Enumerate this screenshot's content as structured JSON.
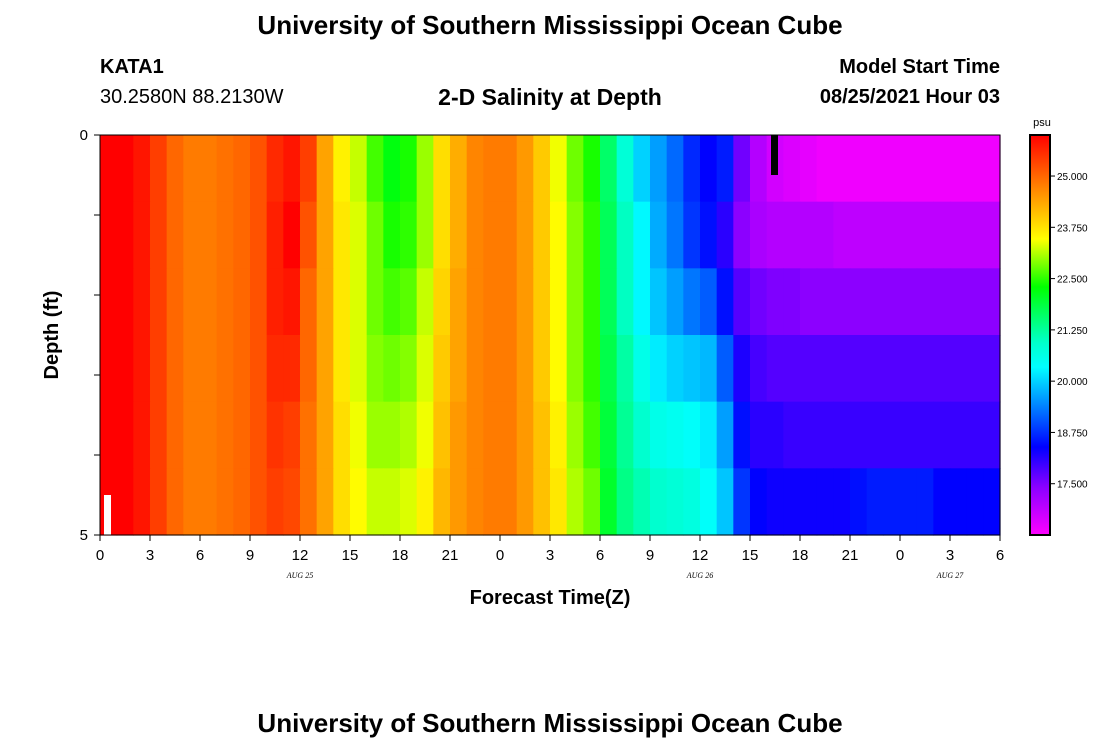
{
  "header": {
    "title": "University of Southern Mississippi Ocean Cube",
    "station_id": "KATA1",
    "station_coords": "30.2580N  88.2130W",
    "chart_title": "2-D Salinity at Depth",
    "model_start_label": "Model Start Time",
    "model_start_time": "08/25/2021 Hour 03"
  },
  "footer": {
    "title": "University of Southern Mississippi Ocean Cube"
  },
  "chart_data": {
    "type": "heatmap",
    "title": "2-D Salinity at Depth",
    "xlabel": "Forecast Time(Z)",
    "ylabel": "Depth (ft)",
    "x_tick_labels": [
      "0",
      "3",
      "6",
      "9",
      "12",
      "15",
      "18",
      "21",
      "0",
      "3",
      "6",
      "9",
      "12",
      "15",
      "18",
      "21",
      "0",
      "3",
      "6"
    ],
    "date_labels": [
      {
        "text": "AUG  25",
        "hour": 12
      },
      {
        "text": "AUG  26",
        "hour": 36
      },
      {
        "text": "AUG  27",
        "hour": 51
      }
    ],
    "xlim_hours": [
      0,
      54
    ],
    "y_tick_labels": [
      "0",
      "5"
    ],
    "ylim_ft": [
      0,
      5
    ],
    "colorbar": {
      "unit": "psu",
      "min": 16.25,
      "max": 26.0,
      "tick_values": [
        25.0,
        23.75,
        22.5,
        21.25,
        20.0,
        18.75,
        17.5
      ],
      "tick_labels": [
        "25.000",
        "23.750",
        "22.500",
        "21.250",
        "20.000",
        "18.750",
        "17.500"
      ]
    },
    "time_hours": [
      0,
      1,
      2,
      3,
      4,
      5,
      6,
      7,
      8,
      9,
      10,
      11,
      12,
      13,
      14,
      15,
      16,
      17,
      18,
      19,
      20,
      21,
      22,
      23,
      24,
      25,
      26,
      27,
      28,
      29,
      30,
      31,
      32,
      33,
      34,
      35,
      36,
      37,
      38,
      39,
      40,
      41,
      42,
      43,
      44,
      45,
      46,
      47,
      48,
      49,
      50,
      51,
      52,
      53
    ],
    "depth_layers_ft": [
      0,
      1,
      2,
      3,
      4,
      5
    ],
    "salinity_psu": [
      [
        26.0,
        26.0,
        25.8,
        25.4,
        25.0,
        24.8,
        24.8,
        24.9,
        25.0,
        25.2,
        25.6,
        25.8,
        25.4,
        24.4,
        23.6,
        23.2,
        22.6,
        22.2,
        22.4,
        23.0,
        23.8,
        24.3,
        24.7,
        24.8,
        24.8,
        24.5,
        24.0,
        23.4,
        22.8,
        22.4,
        21.6,
        20.8,
        20.0,
        19.6,
        19.2,
        18.7,
        18.4,
        18.6,
        17.6,
        17.0,
        16.7,
        16.6,
        16.5,
        16.4,
        16.4,
        16.4,
        16.4,
        16.4,
        16.4,
        16.4,
        16.4,
        16.4,
        16.4,
        16.4
      ],
      [
        26.0,
        26.0,
        25.8,
        25.4,
        25.0,
        24.8,
        24.8,
        24.9,
        25.0,
        25.2,
        25.7,
        26.0,
        25.2,
        24.4,
        23.7,
        23.3,
        22.8,
        22.4,
        22.5,
        23.0,
        23.8,
        24.3,
        24.7,
        24.8,
        24.8,
        24.5,
        24.0,
        23.5,
        22.9,
        22.5,
        21.7,
        21.0,
        20.3,
        19.7,
        19.3,
        18.8,
        18.5,
        18.1,
        17.4,
        17.1,
        17.0,
        17.0,
        17.0,
        17.0,
        16.9,
        16.9,
        16.9,
        16.9,
        16.9,
        16.9,
        16.9,
        16.9,
        16.9,
        16.9
      ],
      [
        26.0,
        26.0,
        25.8,
        25.4,
        25.0,
        24.8,
        24.8,
        24.9,
        25.0,
        25.2,
        25.7,
        25.8,
        25.0,
        24.4,
        23.7,
        23.3,
        22.8,
        22.6,
        22.7,
        23.2,
        23.9,
        24.4,
        24.7,
        24.8,
        24.8,
        24.5,
        24.0,
        23.5,
        22.9,
        22.5,
        21.7,
        21.0,
        20.3,
        19.9,
        19.6,
        19.3,
        19.1,
        18.5,
        17.8,
        17.6,
        17.5,
        17.5,
        17.4,
        17.4,
        17.4,
        17.4,
        17.4,
        17.4,
        17.4,
        17.4,
        17.4,
        17.4,
        17.4,
        17.4
      ],
      [
        26.0,
        26.0,
        25.8,
        25.4,
        25.0,
        24.8,
        24.8,
        24.9,
        25.0,
        25.2,
        25.6,
        25.6,
        25.0,
        24.4,
        23.7,
        23.3,
        22.9,
        22.8,
        22.9,
        23.3,
        24.0,
        24.4,
        24.7,
        24.8,
        24.8,
        24.5,
        24.0,
        23.5,
        22.9,
        22.5,
        21.8,
        21.2,
        20.6,
        20.2,
        20.0,
        19.9,
        19.8,
        19.1,
        18.2,
        17.9,
        17.8,
        17.8,
        17.8,
        17.8,
        17.8,
        17.8,
        17.8,
        17.8,
        17.8,
        17.8,
        17.8,
        17.8,
        17.8,
        17.8
      ],
      [
        26.0,
        26.0,
        25.8,
        25.4,
        25.0,
        24.8,
        24.8,
        24.9,
        25.0,
        25.2,
        25.5,
        25.4,
        24.9,
        24.4,
        23.8,
        23.4,
        23.0,
        23.0,
        23.1,
        23.4,
        24.1,
        24.5,
        24.7,
        24.8,
        24.8,
        24.5,
        24.1,
        23.6,
        23.0,
        22.6,
        21.9,
        21.3,
        20.9,
        20.6,
        20.5,
        20.4,
        20.2,
        19.6,
        18.5,
        18.1,
        18.1,
        18.0,
        18.0,
        18.0,
        18.0,
        18.0,
        18.0,
        18.0,
        18.0,
        18.0,
        18.0,
        18.0,
        18.0,
        18.0
      ],
      [
        26.0,
        26.0,
        25.8,
        25.4,
        25.0,
        24.8,
        24.8,
        24.9,
        25.0,
        25.2,
        25.4,
        25.3,
        24.9,
        24.4,
        23.8,
        23.5,
        23.2,
        23.2,
        23.3,
        23.6,
        24.2,
        24.5,
        24.7,
        24.8,
        24.8,
        24.5,
        24.1,
        23.7,
        23.1,
        22.8,
        22.0,
        21.4,
        21.1,
        20.9,
        20.8,
        20.7,
        20.4,
        19.9,
        18.8,
        18.4,
        18.3,
        18.3,
        18.3,
        18.3,
        18.3,
        18.5,
        18.6,
        18.6,
        18.6,
        18.6,
        18.4,
        18.4,
        18.4,
        18.4
      ]
    ]
  }
}
